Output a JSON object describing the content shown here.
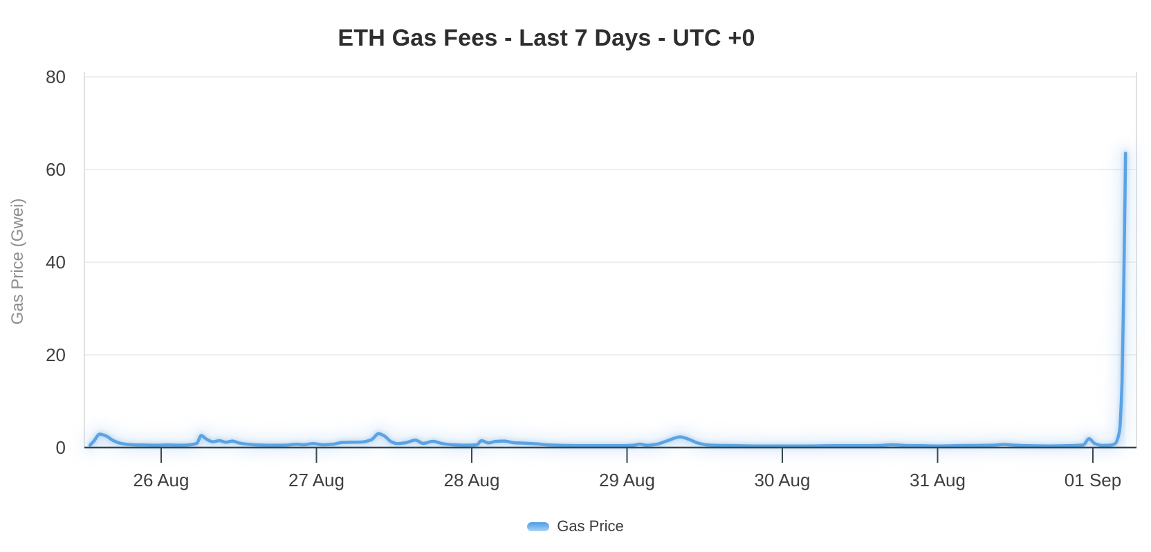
{
  "chart_data": {
    "type": "line",
    "title": "ETH Gas Fees - Last 7 Days - UTC +0",
    "xlabel": "",
    "ylabel": "Gas Price (Gwei)",
    "ylim": [
      0,
      80
    ],
    "y_ticks": [
      0,
      20,
      40,
      60,
      80
    ],
    "x_ticks": [
      {
        "label": "26 Aug",
        "t": 24
      },
      {
        "label": "27 Aug",
        "t": 48
      },
      {
        "label": "28 Aug",
        "t": 72
      },
      {
        "label": "29 Aug",
        "t": 96
      },
      {
        "label": "30 Aug",
        "t": 120
      },
      {
        "label": "31 Aug",
        "t": 144
      },
      {
        "label": "01 Sep",
        "t": 168
      }
    ],
    "x_unit": "hours, t=0 at 25 Aug 00:00 UTC+0",
    "xlim_t": [
      12.1,
      174.7
    ],
    "grid": "horizontal",
    "legend": {
      "position": "bottom",
      "items": [
        {
          "label": "Gas Price",
          "color": "#5BA3E4"
        }
      ]
    },
    "series": [
      {
        "name": "Gas Price",
        "color": "#5BA3E4",
        "points": [
          [
            13,
            0.5
          ],
          [
            13.6,
            1.4
          ],
          [
            14.5,
            2.9
          ],
          [
            15.5,
            2.5
          ],
          [
            16.5,
            1.6
          ],
          [
            17.5,
            1.0
          ],
          [
            19,
            0.65
          ],
          [
            21,
            0.55
          ],
          [
            23,
            0.5
          ],
          [
            25,
            0.55
          ],
          [
            27,
            0.5
          ],
          [
            28.5,
            0.6
          ],
          [
            29.5,
            0.9
          ],
          [
            30.2,
            2.6
          ],
          [
            31,
            1.8
          ],
          [
            32,
            1.25
          ],
          [
            33,
            1.5
          ],
          [
            34,
            1.15
          ],
          [
            35,
            1.4
          ],
          [
            36,
            1.0
          ],
          [
            37.5,
            0.7
          ],
          [
            39,
            0.55
          ],
          [
            41,
            0.5
          ],
          [
            43,
            0.5
          ],
          [
            45,
            0.7
          ],
          [
            46,
            0.6
          ],
          [
            47.5,
            0.85
          ],
          [
            49,
            0.6
          ],
          [
            50.5,
            0.7
          ],
          [
            52,
            1.1
          ],
          [
            53.5,
            1.15
          ],
          [
            55,
            1.2
          ],
          [
            56.5,
            1.7
          ],
          [
            57.6,
            3.0
          ],
          [
            58.5,
            2.5
          ],
          [
            59.5,
            1.3
          ],
          [
            60.5,
            0.85
          ],
          [
            61.8,
            1.05
          ],
          [
            63.3,
            1.6
          ],
          [
            64.5,
            0.9
          ],
          [
            66,
            1.35
          ],
          [
            67.5,
            0.85
          ],
          [
            69,
            0.6
          ],
          [
            71,
            0.5
          ],
          [
            72.8,
            0.6
          ],
          [
            73.5,
            1.5
          ],
          [
            74.6,
            1.0
          ],
          [
            75.6,
            1.3
          ],
          [
            77,
            1.4
          ],
          [
            78.5,
            1.05
          ],
          [
            80,
            0.95
          ],
          [
            82,
            0.8
          ],
          [
            84,
            0.55
          ],
          [
            86.5,
            0.45
          ],
          [
            89,
            0.4
          ],
          [
            92,
            0.4
          ],
          [
            95,
            0.4
          ],
          [
            97,
            0.5
          ],
          [
            98,
            0.75
          ],
          [
            99,
            0.5
          ],
          [
            100.5,
            0.7
          ],
          [
            102.3,
            1.5
          ],
          [
            104.2,
            2.3
          ],
          [
            105.5,
            1.8
          ],
          [
            107,
            0.95
          ],
          [
            108.5,
            0.55
          ],
          [
            110.5,
            0.45
          ],
          [
            113,
            0.4
          ],
          [
            116,
            0.35
          ],
          [
            120,
            0.35
          ],
          [
            124,
            0.35
          ],
          [
            128,
            0.4
          ],
          [
            132,
            0.4
          ],
          [
            135,
            0.45
          ],
          [
            137,
            0.6
          ],
          [
            139,
            0.45
          ],
          [
            141.5,
            0.4
          ],
          [
            144,
            0.35
          ],
          [
            147,
            0.4
          ],
          [
            150,
            0.45
          ],
          [
            152.5,
            0.5
          ],
          [
            154.2,
            0.65
          ],
          [
            156,
            0.5
          ],
          [
            158,
            0.4
          ],
          [
            161,
            0.35
          ],
          [
            164,
            0.4
          ],
          [
            166.5,
            0.55
          ],
          [
            167.4,
            1.9
          ],
          [
            168.3,
            0.85
          ],
          [
            169.5,
            0.45
          ],
          [
            170.6,
            0.5
          ],
          [
            171.4,
            0.8
          ],
          [
            172.1,
            3.5
          ],
          [
            172.5,
            14
          ],
          [
            172.8,
            38
          ],
          [
            173.05,
            63.5
          ]
        ]
      }
    ],
    "colors": {
      "line": "#5BA3E4",
      "glow": "#9CC6EC",
      "grid": "#E9E9E9",
      "plot_edge": "#D8D8D8",
      "x_axis": "#37474F",
      "tick_label": "#3F3F3F",
      "axis_title": "#8E8E8E",
      "title": "#2E2E2E",
      "legend_text": "#373D3F",
      "legend_gradient_top": "#4D9AE4",
      "legend_gradient_bottom": "#A9D3F4"
    }
  }
}
